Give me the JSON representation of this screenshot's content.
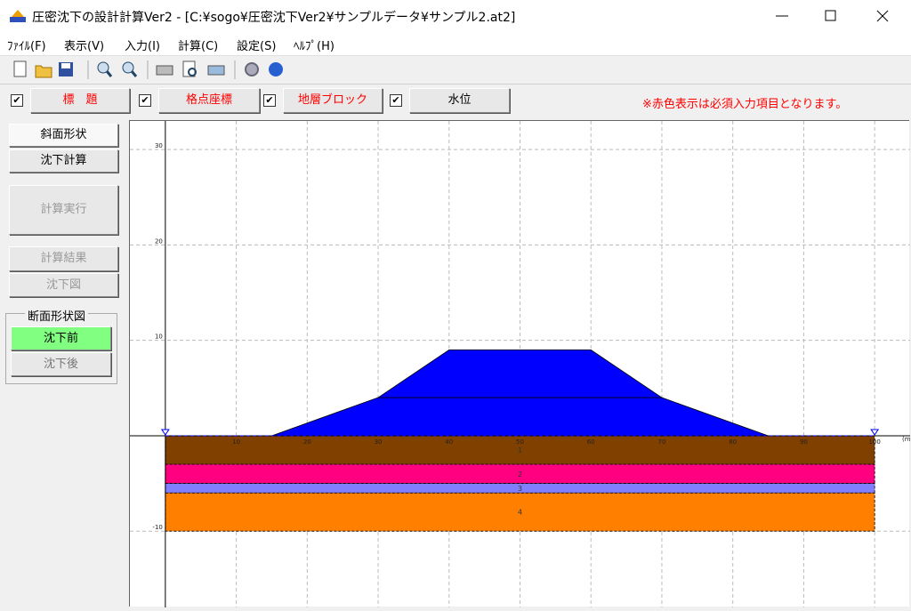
{
  "window": {
    "title": "圧密沈下の設計計算Ver2  - [C:¥sogo¥圧密沈下Ver2¥サンプルデータ¥サンプル2.at2]"
  },
  "menu": [
    "ﾌｧｲﾙ(F)",
    "表示(V)",
    "入力(I)",
    "計算(C)",
    "設定(S)",
    "ﾍﾙﾌﾟ(H)"
  ],
  "tabs": [
    {
      "label": "標　題",
      "required": true,
      "checked": true
    },
    {
      "label": "格点座標",
      "required": true,
      "checked": true
    },
    {
      "label": "地層ブロック",
      "required": true,
      "checked": true
    },
    {
      "label": "水位",
      "required": false,
      "checked": true
    }
  ],
  "notice": "※赤色表示は必須入力項目となります。",
  "side_buttons": [
    "斜面形状",
    "沈下計算",
    "計算実行",
    "計算結果",
    "沈下図"
  ],
  "view_group": {
    "title": "断面形状図",
    "options": [
      "沈下前",
      "沈下後"
    ]
  },
  "chart_data": {
    "type": "polygon",
    "x_label": "(m",
    "xlim": [
      -5,
      105
    ],
    "ylim": [
      -18,
      33
    ],
    "xticks": [
      10,
      20,
      30,
      40,
      50,
      60,
      70,
      80,
      90,
      100
    ],
    "yticks": [
      -10,
      10,
      20,
      30
    ],
    "grid": true,
    "shapes": [
      {
        "color": "#0000ff",
        "x": [
          15,
          30,
          70,
          85
        ],
        "y": [
          0,
          4,
          4,
          0
        ]
      },
      {
        "color": "#0000ff",
        "x": [
          30,
          40,
          60,
          70
        ],
        "y": [
          4,
          9,
          9,
          4
        ]
      },
      {
        "name": "1",
        "color": "#804000",
        "x": [
          0,
          100,
          100,
          0
        ],
        "y": [
          0,
          0,
          -3,
          -3
        ]
      },
      {
        "name": "2",
        "color": "#ff0080",
        "x": [
          0,
          100,
          100,
          0
        ],
        "y": [
          -3,
          -3,
          -5,
          -5
        ]
      },
      {
        "name": "3",
        "color": "#8080ff",
        "x": [
          0,
          100,
          100,
          0
        ],
        "y": [
          -5,
          -5,
          -6,
          -6
        ]
      },
      {
        "name": "4",
        "color": "#ff8000",
        "x": [
          0,
          100,
          100,
          0
        ],
        "y": [
          -6,
          -6,
          -10,
          -10
        ]
      }
    ],
    "water_level": {
      "color": "#0000ff",
      "x": [
        0,
        100
      ],
      "y": [
        0,
        0
      ]
    }
  }
}
